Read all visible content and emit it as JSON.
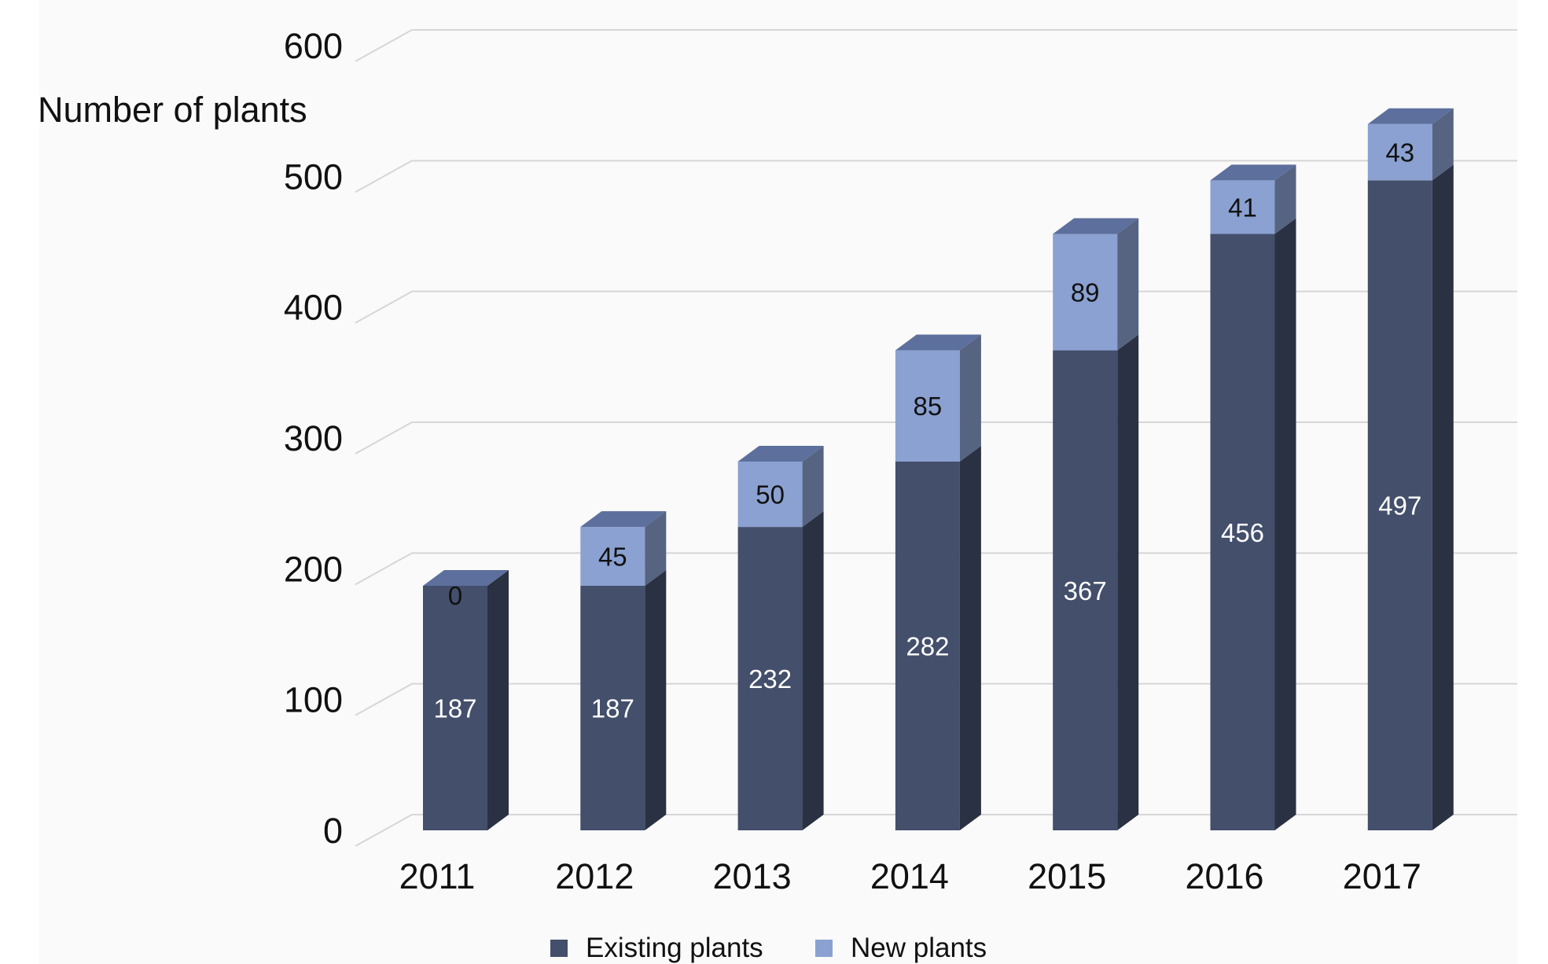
{
  "chart_data": {
    "type": "bar",
    "stacked": true,
    "three_d": true,
    "title": "",
    "xlabel": "",
    "ylabel": "Number of plants",
    "ylim": [
      0,
      600
    ],
    "yticks": [
      0,
      100,
      200,
      300,
      400,
      500,
      600
    ],
    "grid": true,
    "legend_position": "bottom",
    "categories": [
      "2011",
      "2012",
      "2013",
      "2014",
      "2015",
      "2016",
      "2017"
    ],
    "series": [
      {
        "name": "Existing plants",
        "values": [
          187,
          187,
          232,
          282,
          367,
          456,
          497
        ],
        "color": "#434f6b"
      },
      {
        "name": "New plants",
        "values": [
          0,
          45,
          50,
          85,
          89,
          41,
          43
        ],
        "color": "#8aa1d1"
      }
    ]
  }
}
